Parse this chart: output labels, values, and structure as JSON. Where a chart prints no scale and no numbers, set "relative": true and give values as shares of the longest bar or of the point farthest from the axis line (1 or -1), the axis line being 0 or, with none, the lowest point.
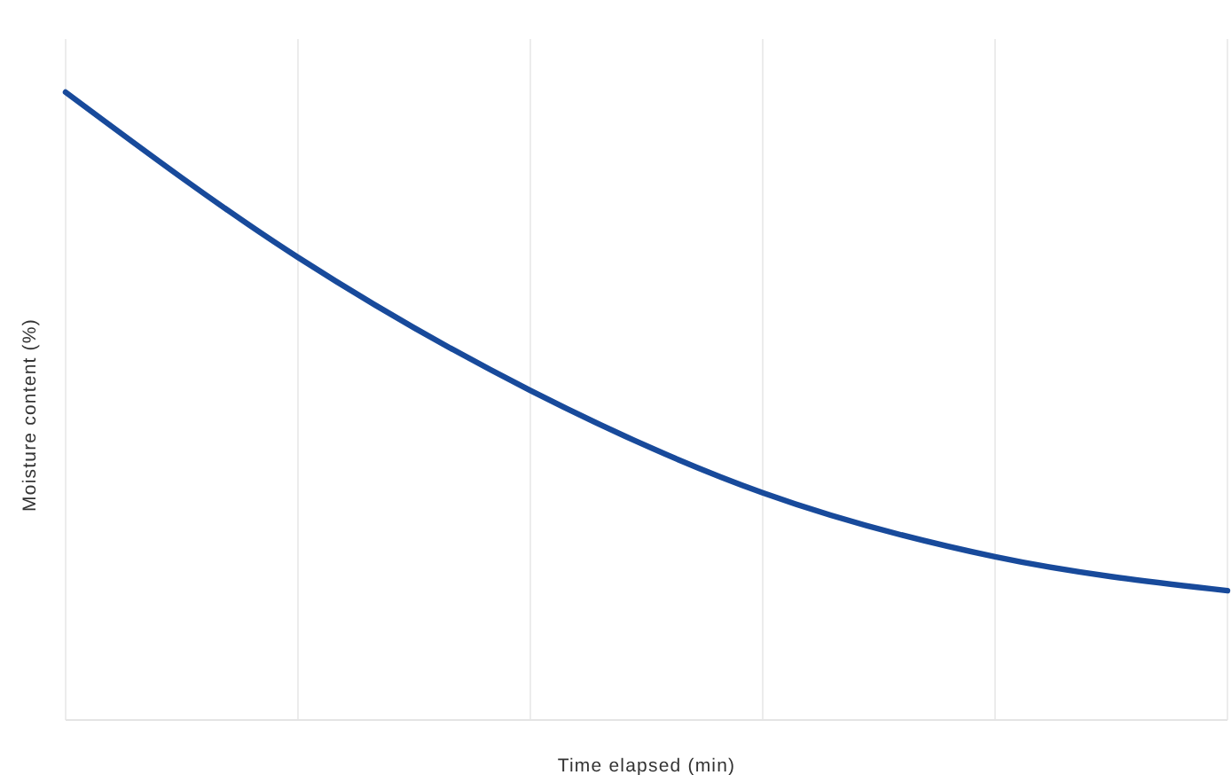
{
  "chart_data": {
    "type": "line",
    "relative": true,
    "xlabel": "Time elapsed (min)",
    "ylabel": "Moisture content (%)",
    "categories": [
      null,
      null,
      null,
      null,
      null,
      null
    ],
    "series": [
      {
        "color": "#184a9b",
        "values": [
          1,
          0.737,
          0.525,
          0.362,
          0.26,
          0.206
        ]
      }
    ],
    "grid": "x",
    "marker": "none",
    "line_style": "solid"
  }
}
